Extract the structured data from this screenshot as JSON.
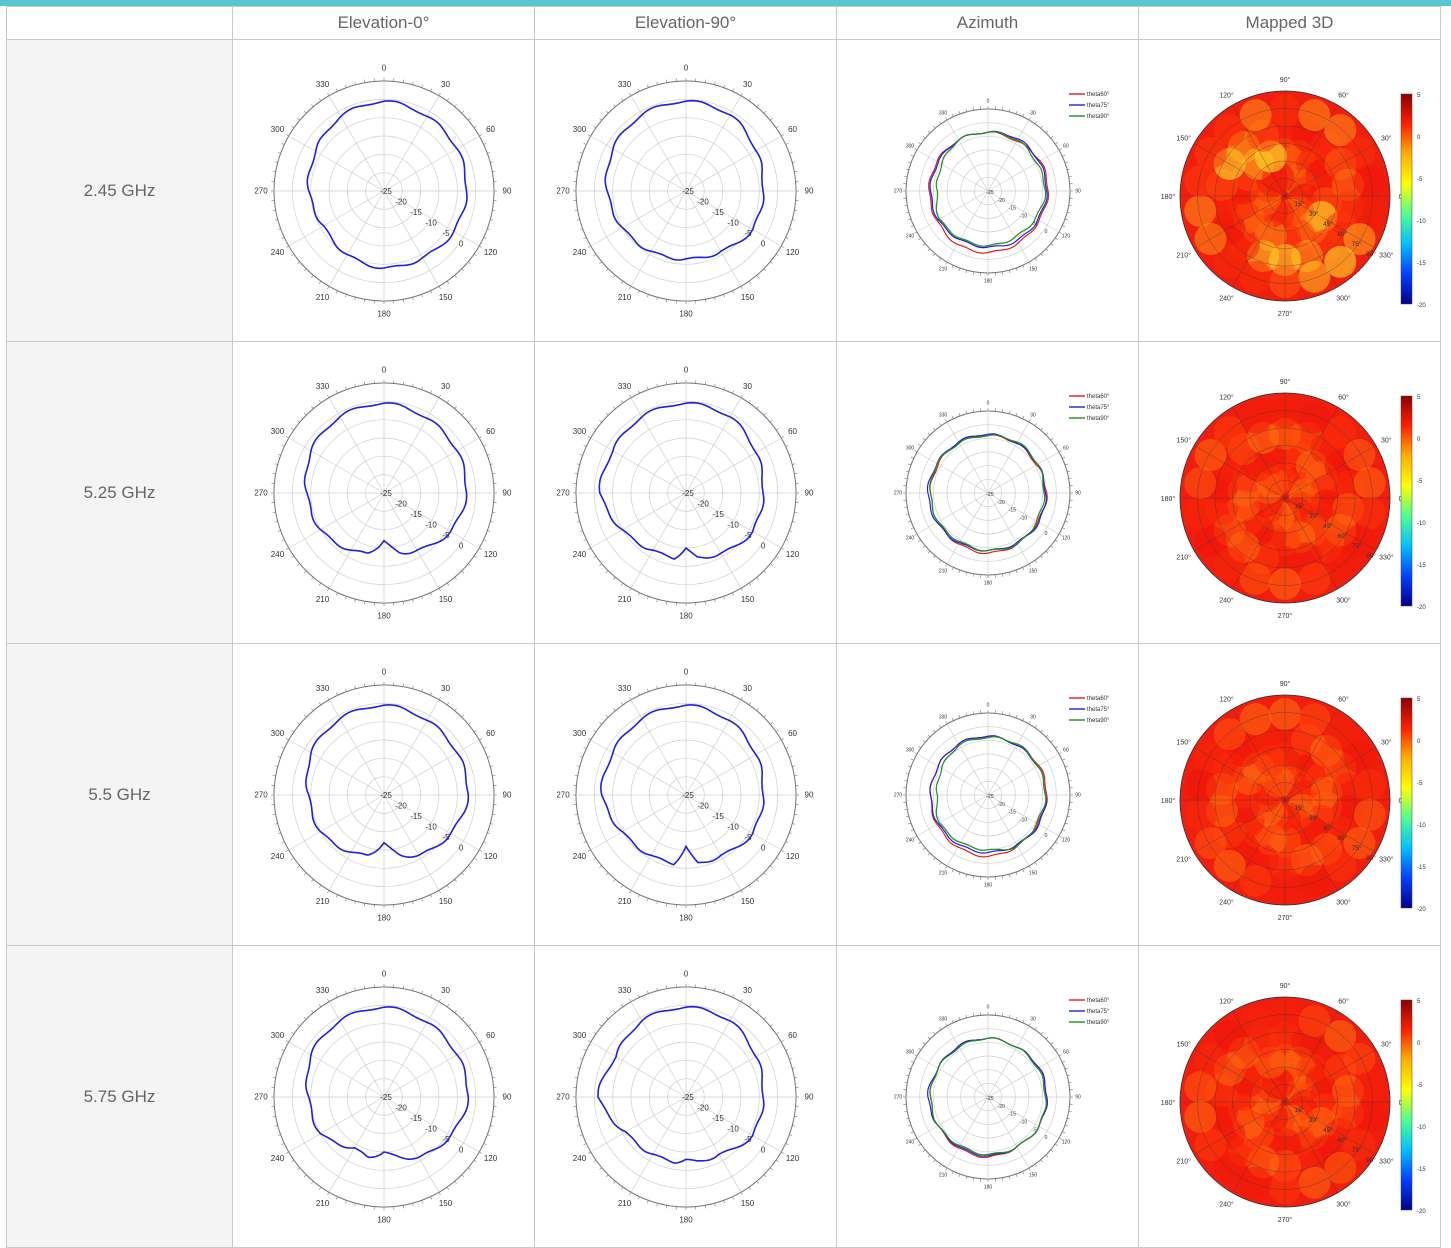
{
  "accent_color": "#58c6cf",
  "table": {
    "columns": [
      "",
      "Elevation-0°",
      "Elevation-90°",
      "Azimuth",
      "Mapped 3D"
    ],
    "rows": [
      {
        "frequency": "2.45 GHz"
      },
      {
        "frequency": "5.25 GHz"
      },
      {
        "frequency": "5.5 GHz"
      },
      {
        "frequency": "5.75 GHz"
      }
    ]
  },
  "polar": {
    "angle_labels": [
      "0",
      "30",
      "60",
      "90",
      "120",
      "150",
      "180",
      "210",
      "240",
      "270",
      "300",
      "330"
    ],
    "radial_labels": [
      "-25",
      "-20",
      "-15",
      "-10",
      "-5",
      "0"
    ],
    "rlim": [
      -25,
      5
    ]
  },
  "map3d": {
    "angle_labels": [
      "0°",
      "30°",
      "60°",
      "90°",
      "120°",
      "150°",
      "180°",
      "210°",
      "240°",
      "270°",
      "300°",
      "330°"
    ],
    "theta_labels": [
      "15°",
      "30°",
      "45°",
      "60°",
      "75°",
      "90°"
    ],
    "colorbar_ticks": [
      "5",
      "0",
      "-5",
      "-10",
      "-15",
      "-20"
    ],
    "colorbar_colors": [
      "#8b0000",
      "#ff2000",
      "#ffb000",
      "#ffff00",
      "#50ff90",
      "#00c0ff",
      "#0040ff",
      "#00008b"
    ]
  },
  "chart_data": [
    {
      "type": "polar-line",
      "row": "2.45 GHz",
      "column": "Elevation-0°",
      "rlim": [
        -25,
        5
      ],
      "series": [
        {
          "color": "#2020e0",
          "theta": [
            0,
            30,
            60,
            90,
            120,
            150,
            180,
            210,
            240,
            270,
            300,
            330,
            360
          ],
          "r": [
            -0.5,
            -1.5,
            -2,
            -2.5,
            -3,
            -4,
            -4,
            -5,
            -6,
            -4.5,
            -3.5,
            -1.5,
            -0.5
          ]
        }
      ]
    },
    {
      "type": "polar-line",
      "row": "2.45 GHz",
      "column": "Elevation-90°",
      "rlim": [
        -25,
        5
      ],
      "series": [
        {
          "color": "#2020e0",
          "theta": [
            0,
            30,
            60,
            90,
            120,
            150,
            180,
            210,
            240,
            270,
            300,
            330,
            360
          ],
          "r": [
            -0.5,
            -1,
            -3,
            -4,
            -4,
            -6,
            -6.5,
            -6,
            -5,
            -3.5,
            -2,
            -1,
            -0.5
          ]
        }
      ]
    },
    {
      "type": "polar-line",
      "row": "2.45 GHz",
      "column": "Azimuth",
      "rlim": [
        -25,
        5
      ],
      "series": [
        {
          "name": "theta60°",
          "color": "#e02020",
          "theta": [
            0,
            30,
            60,
            90,
            120,
            150,
            180,
            210,
            240,
            270,
            300,
            330,
            360
          ],
          "r": [
            -3.5,
            -4,
            -3,
            -3,
            -3.5,
            -3,
            -2.5,
            -2.5,
            -3.5,
            -3.5,
            -3.5,
            -3.5,
            -3.5
          ]
        },
        {
          "name": "theta75°",
          "color": "#2020e0",
          "theta": [
            0,
            30,
            60,
            90,
            120,
            150,
            180,
            210,
            240,
            270,
            300,
            330,
            360
          ],
          "r": [
            -3.5,
            -3,
            -3.5,
            -3.5,
            -4,
            -4,
            -4.5,
            -4.5,
            -4,
            -4,
            -4,
            -3.5,
            -3.5
          ]
        },
        {
          "name": "theta90°",
          "color": "#209020",
          "theta": [
            0,
            30,
            60,
            90,
            120,
            150,
            180,
            210,
            240,
            270,
            300,
            330,
            360
          ],
          "r": [
            -3.5,
            -3.5,
            -4.5,
            -4,
            -5,
            -5.5,
            -5,
            -5,
            -4.5,
            -6.5,
            -5.5,
            -3.5,
            -3.5
          ]
        }
      ]
    },
    {
      "type": "heatmap-polar",
      "row": "2.45 GHz",
      "column": "Mapped 3D",
      "zlim": [
        -20,
        5
      ],
      "dominant": "red-orange with yellow lobe toward 150°-180°"
    },
    {
      "type": "polar-line",
      "row": "5.25 GHz",
      "column": "Elevation-0°",
      "rlim": [
        -25,
        5
      ],
      "series": [
        {
          "color": "#2020e0",
          "theta": [
            0,
            30,
            60,
            90,
            120,
            150,
            165,
            180,
            195,
            210,
            240,
            270,
            300,
            330,
            360
          ],
          "r": [
            -0.5,
            -1.5,
            -2,
            -2.5,
            -4,
            -7,
            -8,
            -12,
            -8,
            -7,
            -5,
            -4,
            -2,
            -1,
            -0.5
          ]
        }
      ]
    },
    {
      "type": "polar-line",
      "row": "5.25 GHz",
      "column": "Elevation-90°",
      "rlim": [
        -25,
        5
      ],
      "series": [
        {
          "color": "#2020e0",
          "theta": [
            0,
            30,
            60,
            90,
            120,
            150,
            170,
            180,
            190,
            210,
            240,
            270,
            300,
            330,
            360
          ],
          "r": [
            -0.5,
            -1,
            -3,
            -4,
            -4,
            -6,
            -7,
            -10,
            -7,
            -7,
            -5,
            -1.5,
            -2,
            -1,
            -0.5
          ]
        }
      ]
    },
    {
      "type": "polar-line",
      "row": "5.25 GHz",
      "column": "Azimuth",
      "rlim": [
        -25,
        5
      ],
      "series": [
        {
          "name": "theta60°",
          "color": "#e02020",
          "theta": [
            0,
            30,
            60,
            90,
            120,
            150,
            180,
            210,
            240,
            270,
            300,
            330,
            360
          ],
          "r": [
            -4,
            -4,
            -4.5,
            -3.5,
            -4,
            -3.5,
            -3,
            -3.5,
            -4,
            -4,
            -4,
            -3.5,
            -4
          ]
        },
        {
          "name": "theta75°",
          "color": "#2020e0",
          "theta": [
            0,
            30,
            60,
            90,
            120,
            150,
            180,
            210,
            240,
            270,
            300,
            330,
            360
          ],
          "r": [
            -3.5,
            -4,
            -4,
            -4,
            -3.5,
            -4,
            -4,
            -4,
            -3.5,
            -3,
            -3.5,
            -3.5,
            -3.5
          ]
        },
        {
          "name": "theta90°",
          "color": "#209020",
          "theta": [
            0,
            30,
            60,
            90,
            120,
            150,
            180,
            210,
            240,
            270,
            300,
            330,
            360
          ],
          "r": [
            -4,
            -3.5,
            -4,
            -4.5,
            -4.5,
            -3.5,
            -4,
            -4.5,
            -4,
            -4,
            -3.5,
            -4,
            -4
          ]
        }
      ]
    },
    {
      "type": "heatmap-polar",
      "row": "5.25 GHz",
      "column": "Mapped 3D",
      "zlim": [
        -20,
        5
      ],
      "dominant": "red"
    },
    {
      "type": "polar-line",
      "row": "5.5 GHz",
      "column": "Elevation-0°",
      "rlim": [
        -25,
        5
      ],
      "series": [
        {
          "color": "#2020e0",
          "theta": [
            0,
            30,
            60,
            90,
            120,
            150,
            165,
            180,
            195,
            210,
            240,
            270,
            300,
            330,
            360
          ],
          "r": [
            -0.5,
            -1.5,
            -2,
            -2,
            -4,
            -6,
            -8,
            -12,
            -8,
            -7,
            -5,
            -4.5,
            -2,
            -1,
            -0.5
          ]
        }
      ]
    },
    {
      "type": "polar-line",
      "row": "5.5 GHz",
      "column": "Elevation-90°",
      "rlim": [
        -25,
        5
      ],
      "series": [
        {
          "color": "#2020e0",
          "theta": [
            0,
            30,
            60,
            90,
            120,
            150,
            170,
            180,
            190,
            210,
            240,
            270,
            300,
            330,
            360
          ],
          "r": [
            -0.5,
            -1.5,
            -3,
            -4,
            -4,
            -6,
            -6,
            -11,
            -6,
            -6,
            -5,
            -2,
            -2,
            -1,
            -0.5
          ]
        }
      ]
    },
    {
      "type": "polar-line",
      "row": "5.5 GHz",
      "column": "Azimuth",
      "rlim": [
        -25,
        5
      ],
      "series": [
        {
          "name": "theta60°",
          "color": "#e02020",
          "theta": [
            0,
            30,
            60,
            90,
            120,
            150,
            180,
            210,
            240,
            270,
            300,
            330,
            360
          ],
          "r": [
            -3.5,
            -4,
            -3.5,
            -3.5,
            -4,
            -3.5,
            -2.5,
            -3,
            -3.5,
            -4,
            -4,
            -3.5,
            -3.5
          ]
        },
        {
          "name": "theta75°",
          "color": "#2020e0",
          "theta": [
            0,
            30,
            60,
            90,
            120,
            150,
            180,
            210,
            240,
            270,
            300,
            330,
            360
          ],
          "r": [
            -3.5,
            -4,
            -4,
            -4,
            -3.5,
            -4,
            -4,
            -4,
            -4,
            -4,
            -4,
            -3.5,
            -3.5
          ]
        },
        {
          "name": "theta90°",
          "color": "#209020",
          "theta": [
            0,
            30,
            60,
            90,
            120,
            150,
            180,
            210,
            240,
            270,
            300,
            330,
            360
          ],
          "r": [
            -4,
            -3.5,
            -4,
            -4,
            -4.5,
            -3.5,
            -5,
            -5,
            -4.5,
            -6.5,
            -5.5,
            -4,
            -4
          ]
        }
      ]
    },
    {
      "type": "heatmap-polar",
      "row": "5.5 GHz",
      "column": "Mapped 3D",
      "zlim": [
        -20,
        5
      ],
      "dominant": "red"
    },
    {
      "type": "polar-line",
      "row": "5.75 GHz",
      "column": "Elevation-0°",
      "rlim": [
        -25,
        5
      ],
      "series": [
        {
          "color": "#2020e0",
          "theta": [
            0,
            30,
            60,
            90,
            120,
            150,
            165,
            180,
            195,
            210,
            240,
            270,
            300,
            330,
            360
          ],
          "r": [
            -0.5,
            -1.5,
            -2,
            -2,
            -4,
            -6,
            -8,
            -10,
            -8,
            -9,
            -5,
            -4.5,
            -2,
            -1,
            -0.5
          ]
        }
      ]
    },
    {
      "type": "polar-line",
      "row": "5.75 GHz",
      "column": "Elevation-90°",
      "rlim": [
        -25,
        5
      ],
      "series": [
        {
          "color": "#2020e0",
          "theta": [
            0,
            30,
            60,
            90,
            120,
            150,
            170,
            180,
            190,
            210,
            240,
            270,
            300,
            330,
            360
          ],
          "r": [
            -0.5,
            -1,
            -3,
            -4,
            -4,
            -7,
            -7,
            -8,
            -7,
            -7,
            -6,
            -1,
            -3,
            -1,
            -0.5
          ]
        }
      ]
    },
    {
      "type": "polar-line",
      "row": "5.75 GHz",
      "column": "Azimuth",
      "rlim": [
        -25,
        5
      ],
      "series": [
        {
          "name": "theta60°",
          "color": "#e02020",
          "theta": [
            0,
            30,
            60,
            90,
            120,
            150,
            180,
            210,
            240,
            270,
            300,
            330,
            360
          ],
          "r": [
            -3.5,
            -4,
            -3.5,
            -3.5,
            -3.5,
            -4,
            -3,
            -3.5,
            -4,
            -4,
            -4,
            -3.5,
            -3.5
          ]
        },
        {
          "name": "theta75°",
          "color": "#2020e0",
          "theta": [
            0,
            30,
            60,
            90,
            120,
            150,
            180,
            210,
            240,
            270,
            300,
            330,
            360
          ],
          "r": [
            -3.5,
            -4,
            -3.5,
            -3.5,
            -3.5,
            -4,
            -3.5,
            -4,
            -4,
            -3,
            -4,
            -3.5,
            -3.5
          ]
        },
        {
          "name": "theta90°",
          "color": "#209020",
          "theta": [
            0,
            30,
            60,
            90,
            120,
            150,
            180,
            210,
            240,
            270,
            300,
            330,
            360
          ],
          "r": [
            -3.5,
            -4,
            -4,
            -4,
            -3.5,
            -4,
            -4,
            -4.5,
            -4,
            -4,
            -4,
            -4,
            -3.5
          ]
        }
      ]
    },
    {
      "type": "heatmap-polar",
      "row": "5.75 GHz",
      "column": "Mapped 3D",
      "zlim": [
        -20,
        5
      ],
      "dominant": "red-orange"
    }
  ]
}
